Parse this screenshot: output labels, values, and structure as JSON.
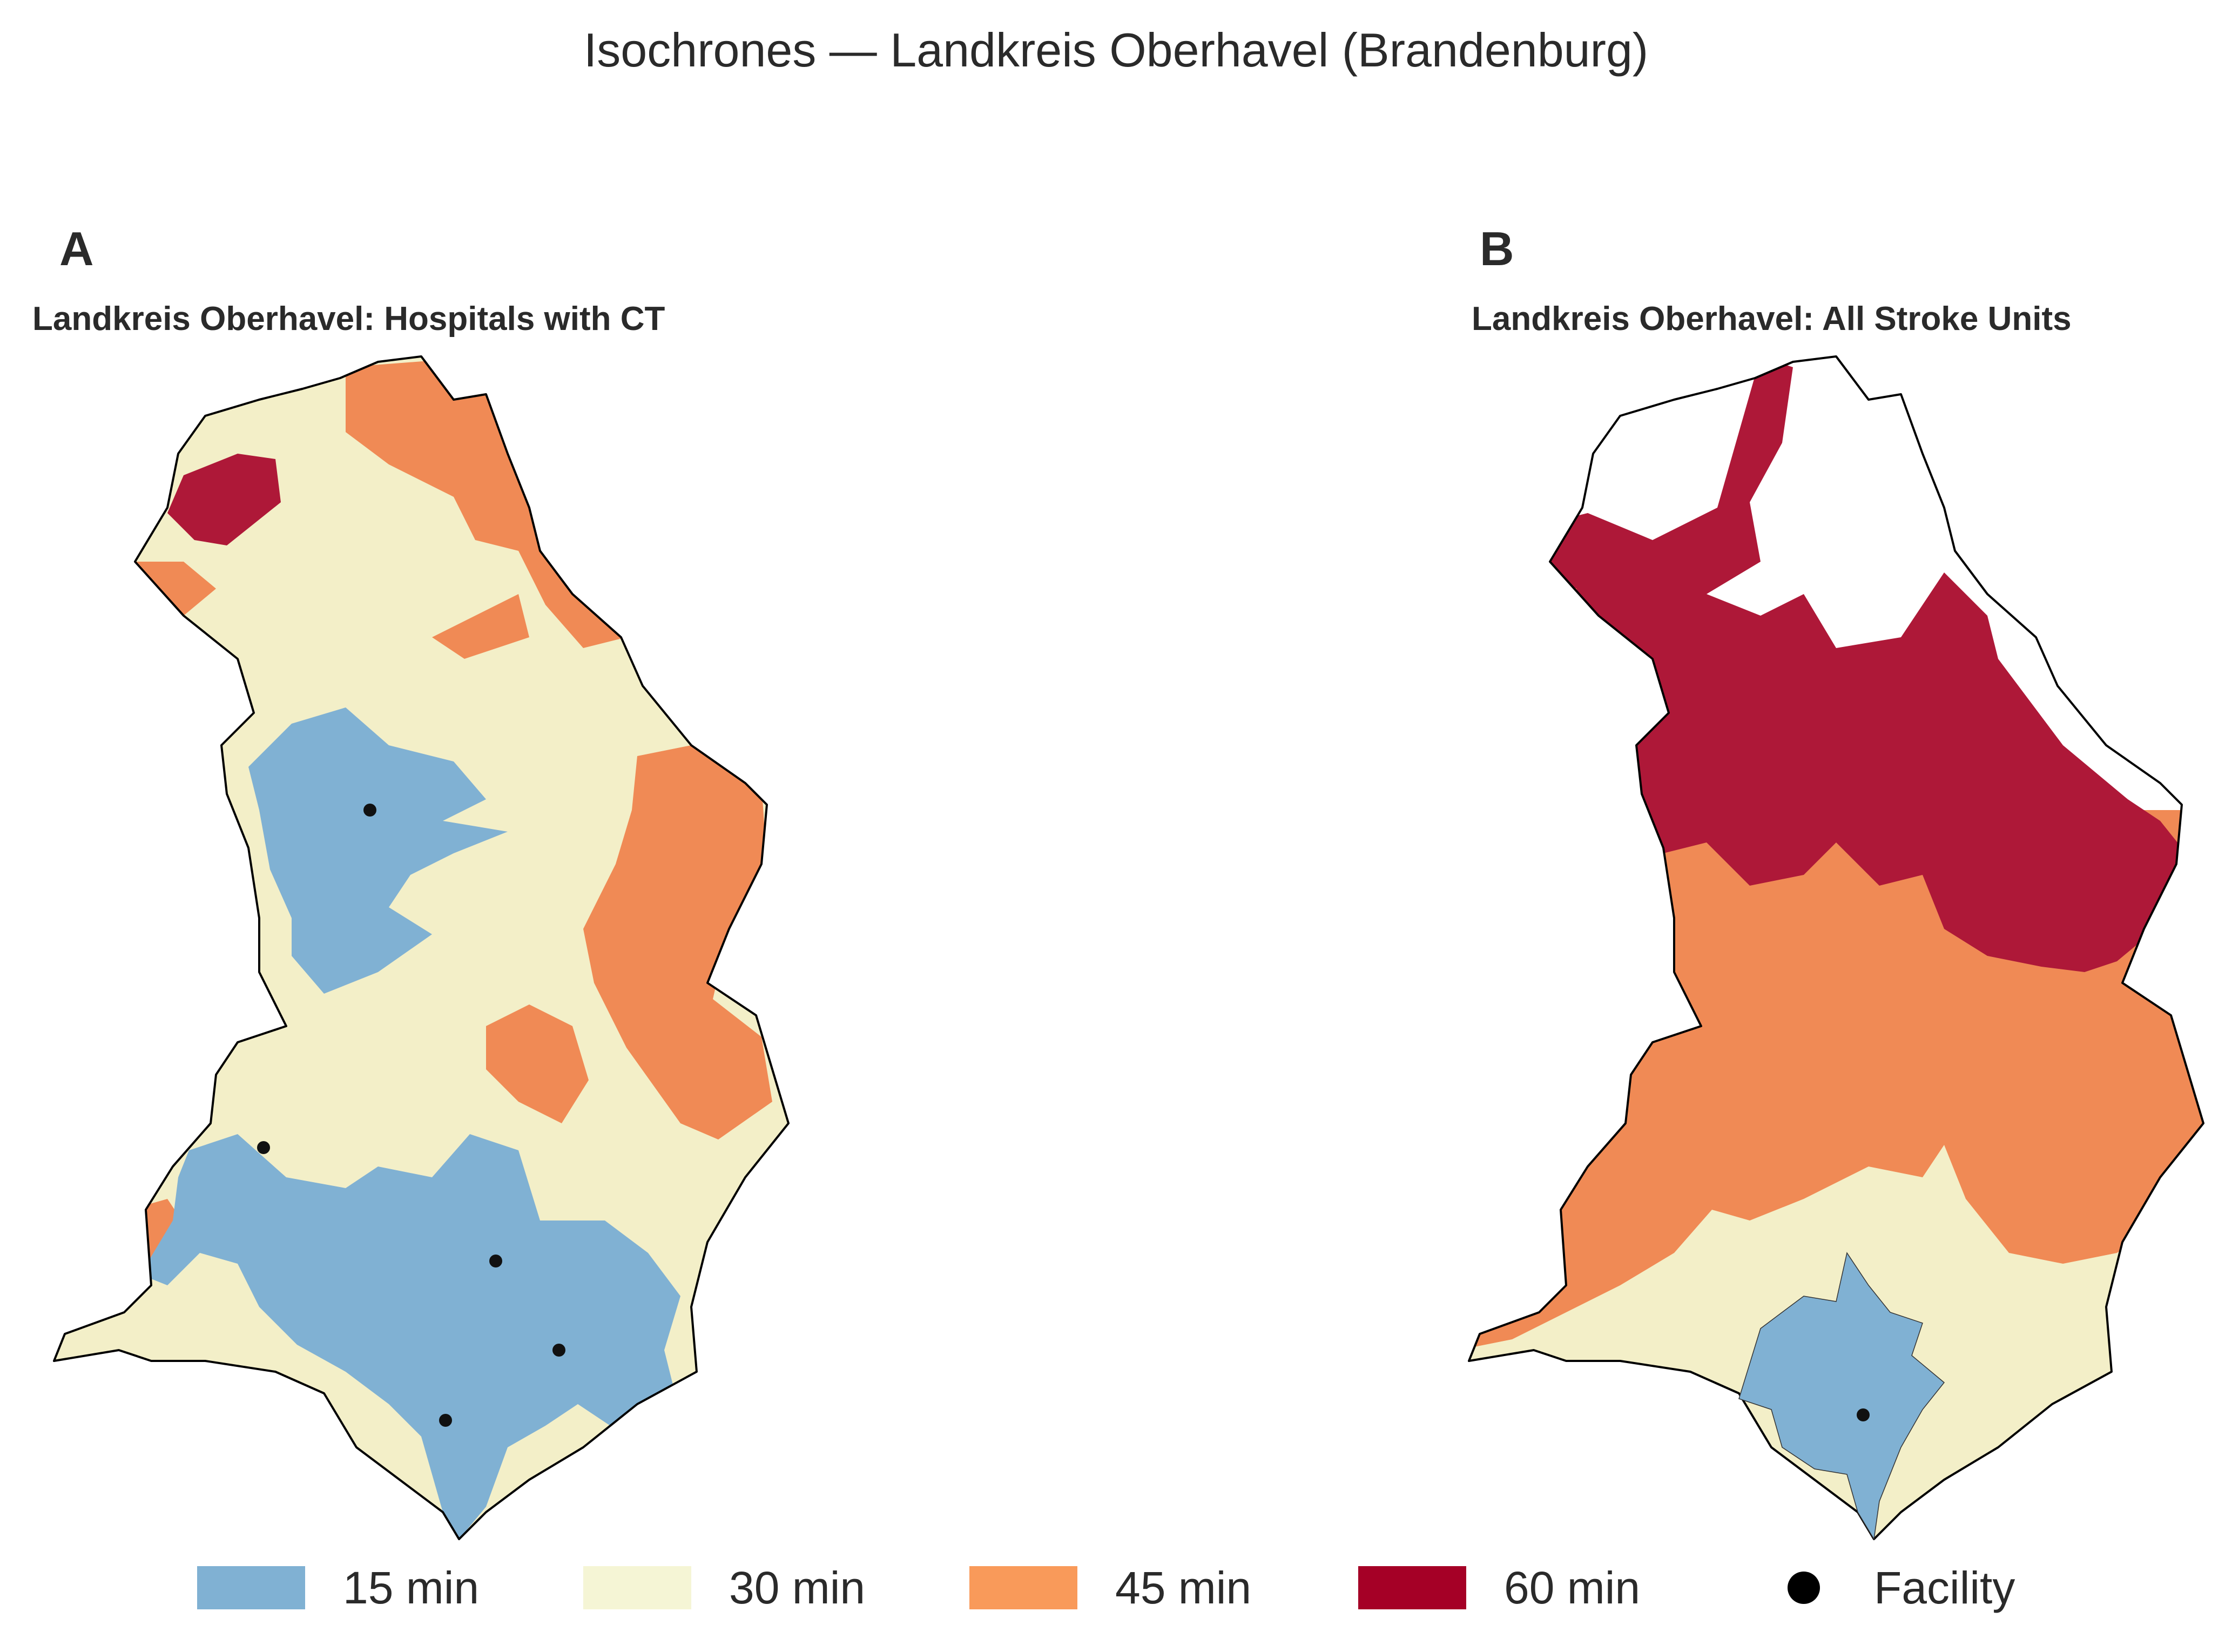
{
  "title": "Isochrones — Landkreis Oberhavel (Brandenburg)",
  "colors": {
    "15 min": "#80b1d3",
    "30 min": "#f3efc8",
    "45 min": "#f08a55",
    "60 min": "#ae1838",
    "boundary": "#000000",
    "facility": "#111111"
  },
  "panels": [
    {
      "letter": "A",
      "title": "Landkreis Oberhavel: Hospitals with CT",
      "facility_count": 5
    },
    {
      "letter": "B",
      "title": "Landkreis Oberhavel: All Stroke Units",
      "facility_count": 1
    }
  ],
  "legend": [
    {
      "label": "15 min",
      "color": "#80b1d3",
      "icon": "swatch"
    },
    {
      "label": "30 min",
      "color": "#f5f5d5",
      "icon": "swatch"
    },
    {
      "label": "45 min",
      "color": "#f99a5a",
      "icon": "swatch"
    },
    {
      "label": "60 min",
      "color": "#a50026",
      "icon": "swatch"
    },
    {
      "label": "Facility",
      "color": "#000000",
      "icon": "dot"
    }
  ]
}
